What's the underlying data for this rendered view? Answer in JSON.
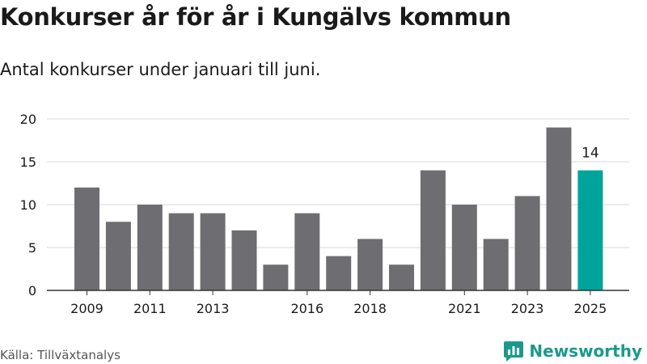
{
  "header": {
    "title": "Konkurser år för år i Kungälvs kommun",
    "subtitle": "Antal konkurser under januari till juni."
  },
  "footer": {
    "source": "Källa: Tillväxtanalys",
    "brand": "Newsworthy"
  },
  "colors": {
    "bar": "#6e6d72",
    "highlight": "#00a49a",
    "grid": "#d9d9d9",
    "axis": "#333333",
    "brand": "#1a9a8c"
  },
  "chart_data": {
    "type": "bar",
    "categories": [
      "2009",
      "2010",
      "2011",
      "2012",
      "2013",
      "2014",
      "2015",
      "2016",
      "2017",
      "2018",
      "2019",
      "2020",
      "2021",
      "2022",
      "2023",
      "2024",
      "2025"
    ],
    "values": [
      12,
      8,
      10,
      9,
      9,
      7,
      3,
      9,
      4,
      6,
      3,
      14,
      10,
      6,
      11,
      19,
      14
    ],
    "visible_x_ticks": [
      "2009",
      "2011",
      "2013",
      "2016",
      "2018",
      "2021",
      "2023",
      "2025"
    ],
    "y_ticks": [
      0,
      5,
      10,
      15,
      20
    ],
    "ylim": [
      0,
      20
    ],
    "highlight_category": "2025",
    "data_labels": [
      {
        "category": "2025",
        "text": "14"
      }
    ],
    "grid": true,
    "legend": "none"
  }
}
